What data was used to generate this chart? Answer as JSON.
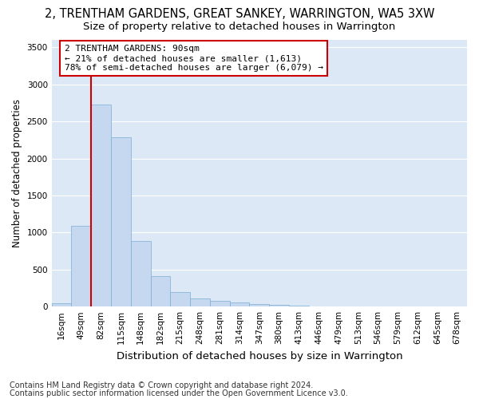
{
  "title": "2, TRENTHAM GARDENS, GREAT SANKEY, WARRINGTON, WA5 3XW",
  "subtitle": "Size of property relative to detached houses in Warrington",
  "xlabel": "Distribution of detached houses by size in Warrington",
  "ylabel": "Number of detached properties",
  "bin_labels": [
    "16sqm",
    "49sqm",
    "82sqm",
    "115sqm",
    "148sqm",
    "182sqm",
    "215sqm",
    "248sqm",
    "281sqm",
    "314sqm",
    "347sqm",
    "380sqm",
    "413sqm",
    "446sqm",
    "479sqm",
    "513sqm",
    "546sqm",
    "579sqm",
    "612sqm",
    "645sqm",
    "678sqm"
  ],
  "bar_values": [
    50,
    1090,
    2730,
    2290,
    880,
    415,
    200,
    110,
    75,
    55,
    30,
    20,
    10,
    5,
    2,
    2,
    1,
    1,
    0,
    0,
    0
  ],
  "bar_color": "#c5d8f0",
  "bar_edgecolor": "#7aadd4",
  "vline_bin_index": 2,
  "vline_color": "#cc0000",
  "annotation_text": "2 TRENTHAM GARDENS: 90sqm\n← 21% of detached houses are smaller (1,613)\n78% of semi-detached houses are larger (6,079) →",
  "annotation_box_facecolor": "#ffffff",
  "annotation_box_edgecolor": "#cc0000",
  "ylim": [
    0,
    3600
  ],
  "yticks": [
    0,
    500,
    1000,
    1500,
    2000,
    2500,
    3000,
    3500
  ],
  "fig_bg_color": "#ffffff",
  "plot_bg_color": "#dce8f5",
  "grid_color": "#ffffff",
  "title_fontsize": 10.5,
  "subtitle_fontsize": 9.5,
  "xlabel_fontsize": 9.5,
  "ylabel_fontsize": 8.5,
  "tick_fontsize": 7.5,
  "annotation_fontsize": 8,
  "footer_fontsize": 7,
  "footer1": "Contains HM Land Registry data © Crown copyright and database right 2024.",
  "footer2": "Contains public sector information licensed under the Open Government Licence v3.0."
}
